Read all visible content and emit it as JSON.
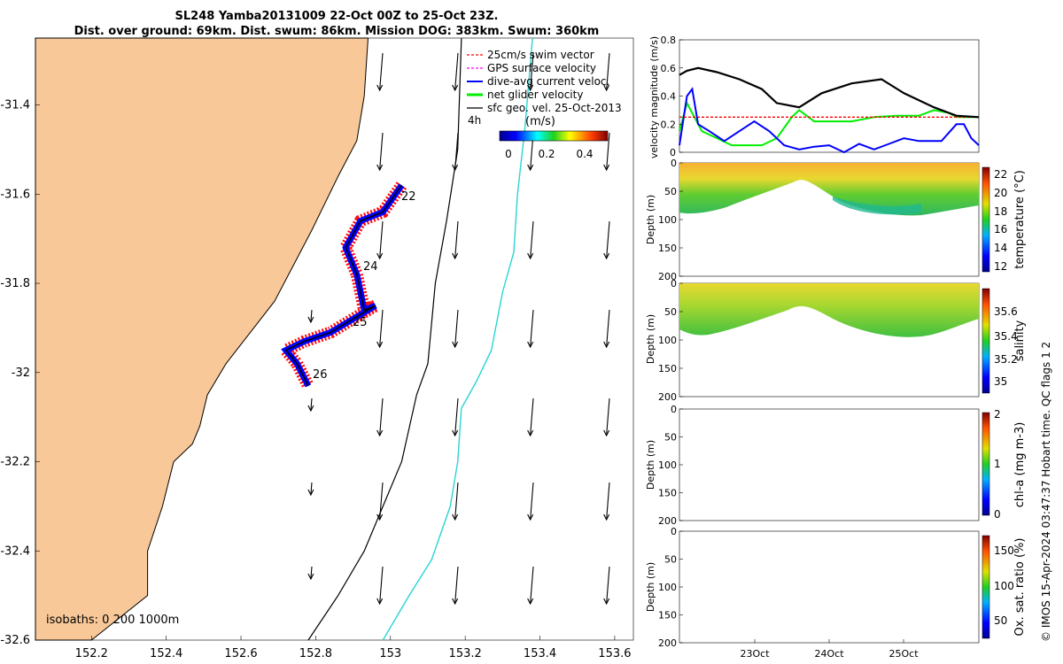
{
  "title": {
    "line1": "SL248 Yamba20131009 22-Oct 00Z to 25-Oct 23Z.",
    "line2": "Dist. over ground: 69km. Dist. swum: 86km. Mission DOG: 383km. Swum: 360km"
  },
  "vertical_note": "© IMOS 15-Apr-2024 03:47:37 Hobart time. QC flags 1  2",
  "colors": {
    "land": "#f8c898",
    "coast": "#000000",
    "isobath_200": "#000000",
    "isobath_1000": "#2ad4d4",
    "track_swim": "#ff0000",
    "track_current": "#0000ff",
    "track_line": "#000000",
    "net_velocity": "#00ee00",
    "gps_velocity": "#ff00ff"
  },
  "map": {
    "isobaths_label": "isobaths: 0   200  1000m",
    "time_marker": "4h",
    "track_day_labels": [
      "22",
      "24",
      "25",
      "26"
    ],
    "colorbar": {
      "label": "(m/s)",
      "ticks": [
        "0",
        "0.2",
        "0.4"
      ],
      "range": [
        0,
        0.5
      ]
    }
  },
  "legend": [
    {
      "label": "25cm/s swim vector",
      "color": "#ff0000",
      "style": "dashed"
    },
    {
      "label": "GPS surface velocity",
      "color": "#ff00ff",
      "style": "dashed"
    },
    {
      "label": "dive-avg current veloc.",
      "color": "#0000ff",
      "style": "solid"
    },
    {
      "label": "net glider velocity",
      "color": "#00ee00",
      "style": "thick"
    },
    {
      "label": "sfc geo. vel. 25-Oct-2013",
      "color": "#000000",
      "style": "arrow"
    }
  ],
  "panels": {
    "temperature": {
      "ylabel": "Depth (m)",
      "cbar_label": "temperature (°C)",
      "cbar_ticks": [
        "22",
        "20",
        "18",
        "16",
        "14",
        "12"
      ],
      "cbar_range": [
        11.5,
        23
      ]
    },
    "salinity": {
      "ylabel": "Depth (m)",
      "cbar_label": "salinity",
      "cbar_ticks": [
        "35.6",
        "35.4",
        "35.2",
        "35"
      ],
      "cbar_range": [
        34.9,
        35.75
      ]
    },
    "chla": {
      "ylabel": "Depth (m)",
      "cbar_label": "chl-a (mg m-3)",
      "cbar_ticks": [
        "2",
        "1",
        "0"
      ],
      "cbar_range": [
        0,
        2
      ]
    },
    "oxygen": {
      "ylabel": "Depth (m)",
      "cbar_label": "Ox. sat. ratio (%)",
      "cbar_ticks": [
        "150",
        "100",
        "50"
      ],
      "cbar_range": [
        30,
        175
      ]
    }
  },
  "chart_data": [
    {
      "type": "line",
      "title": "",
      "xlabel": "",
      "ylabel": "velocity magnitude (m/s)",
      "xlim": [
        0,
        4
      ],
      "ylim": [
        0,
        0.8
      ],
      "yticks": [
        "0",
        "0.2",
        "0.4",
        "0.6",
        "0.8"
      ],
      "series": [
        {
          "name": "net glider velocity",
          "color": "#00ee00",
          "x": [
            0,
            0.1,
            0.2,
            0.3,
            0.5,
            0.7,
            0.9,
            1.1,
            1.3,
            1.5,
            1.6,
            1.8,
            2.0,
            2.3,
            2.6,
            2.9,
            3.2,
            3.4,
            3.6,
            3.7,
            3.8,
            4.0
          ],
          "y": [
            0.15,
            0.35,
            0.25,
            0.15,
            0.1,
            0.05,
            0.05,
            0.05,
            0.1,
            0.25,
            0.3,
            0.22,
            0.22,
            0.22,
            0.25,
            0.26,
            0.26,
            0.3,
            0.28,
            0.25,
            0.25,
            0.25
          ]
        },
        {
          "name": "dive-avg current veloc.",
          "color": "#0000ff",
          "x": [
            0,
            0.1,
            0.17,
            0.25,
            0.4,
            0.6,
            0.8,
            1.0,
            1.2,
            1.4,
            1.6,
            1.8,
            2.0,
            2.2,
            2.4,
            2.6,
            2.8,
            3.0,
            3.2,
            3.5,
            3.7,
            3.8,
            3.9,
            4.0
          ],
          "y": [
            0.05,
            0.4,
            0.45,
            0.2,
            0.15,
            0.08,
            0.15,
            0.22,
            0.15,
            0.05,
            0.02,
            0.04,
            0.05,
            0.0,
            0.06,
            0.02,
            0.06,
            0.1,
            0.08,
            0.08,
            0.2,
            0.2,
            0.1,
            0.05
          ]
        },
        {
          "name": "25cm/s swim vector",
          "color": "#ff0000",
          "x": [
            0,
            4
          ],
          "y": [
            0.25,
            0.25
          ]
        },
        {
          "name": "",
          "color": "#000000",
          "x": [
            0,
            0.1,
            0.25,
            0.5,
            0.8,
            1.1,
            1.3,
            1.6,
            1.9,
            2.3,
            2.7,
            3.0,
            3.4,
            3.7,
            4.0
          ],
          "y": [
            0.55,
            0.58,
            0.6,
            0.57,
            0.52,
            0.45,
            0.35,
            0.32,
            0.42,
            0.49,
            0.52,
            0.42,
            0.32,
            0.26,
            0.25
          ]
        }
      ]
    },
    {
      "type": "map",
      "xlabel": "",
      "ylabel": "",
      "xlim": [
        152.05,
        153.65
      ],
      "ylim": [
        -32.6,
        -31.25
      ],
      "xticks": [
        "152.2",
        "152.4",
        "152.6",
        "152.8",
        "153",
        "153.2",
        "153.4",
        "153.6"
      ],
      "yticks": [
        "-31.4",
        "-31.6",
        "-31.8",
        "-32",
        "-32.2",
        "-32.4",
        "-32.6"
      ],
      "glider_track": {
        "lon": [
          153.03,
          152.98,
          152.92,
          152.88,
          152.91,
          152.93,
          152.96,
          152.84,
          152.77,
          152.72,
          152.75,
          152.78
        ],
        "lat": [
          -31.58,
          -31.64,
          -31.66,
          -31.72,
          -31.78,
          -31.86,
          -31.85,
          -31.91,
          -31.93,
          -31.95,
          -31.98,
          -32.03
        ]
      },
      "coast": {
        "lon": [
          152.05,
          152.94,
          152.93,
          152.91,
          152.86,
          152.79,
          152.69,
          152.56,
          152.51,
          152.49,
          152.47,
          152.42,
          152.39,
          152.35,
          152.35,
          152.2,
          152.15,
          152.05
        ],
        "lat": [
          -31.25,
          -31.25,
          -31.38,
          -31.48,
          -31.56,
          -31.68,
          -31.84,
          -31.98,
          -32.05,
          -32.12,
          -32.16,
          -32.2,
          -32.3,
          -32.4,
          -32.5,
          -32.6,
          -32.6,
          -32.6
        ]
      },
      "isobath_200": {
        "lon": [
          153.19,
          153.18,
          153.15,
          153.12,
          153.1,
          153.07,
          153.03,
          152.98,
          152.93,
          152.86,
          152.78
        ],
        "lat": [
          -31.25,
          -31.5,
          -31.66,
          -31.8,
          -31.98,
          -32.05,
          -32.2,
          -32.3,
          -32.4,
          -32.5,
          -32.6
        ]
      },
      "isobath_1000": {
        "lon": [
          153.38,
          153.36,
          153.34,
          153.33,
          153.3,
          153.27,
          153.23,
          153.19,
          153.18,
          153.16,
          153.11,
          153.05,
          152.98
        ],
        "lat": [
          -31.25,
          -31.45,
          -31.6,
          -31.73,
          -31.82,
          -31.95,
          -32.02,
          -32.08,
          -32.2,
          -32.3,
          -32.42,
          -32.5,
          -32.6
        ]
      }
    }
  ]
}
